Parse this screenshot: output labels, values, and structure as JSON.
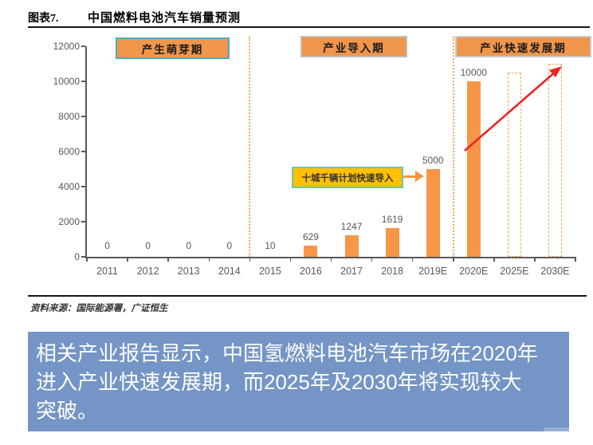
{
  "header": {
    "figure_label": "图表7.",
    "figure_title": "中国燃料电池汽车销量预测"
  },
  "source": {
    "text": "资料来源：国际能源署，广证恒生"
  },
  "banner": {
    "lines": [
      "相关产业报告显示，中国氢燃料电池汽车市场在2020年",
      "进入产业快速发展期，而2025年及2030年将实现较大",
      "突破。"
    ],
    "bg_color": "#7495C5",
    "text_color": "#FFFFFF"
  },
  "chart_data": {
    "type": "bar",
    "title": "中国燃料电池汽车销量预测",
    "categories": [
      "2011",
      "2012",
      "2013",
      "2014",
      "2015",
      "2016",
      "2017",
      "2018",
      "2019E",
      "2020E",
      "2025E",
      "2030E"
    ],
    "values": [
      0,
      0,
      0,
      0,
      10,
      629,
      1247,
      1619,
      5000,
      10000,
      10500,
      11000
    ],
    "data_labels": [
      "0",
      "0",
      "0",
      "0",
      "10",
      "629",
      "1247",
      "1619",
      "5000",
      "10000",
      "",
      ""
    ],
    "bar_style": [
      "solid",
      "solid",
      "solid",
      "solid",
      "solid",
      "solid",
      "solid",
      "solid",
      "solid",
      "solid",
      "outline",
      "outline"
    ],
    "xlabel": "",
    "ylabel": "",
    "ylim": [
      0,
      12000
    ],
    "ytick_step": 2000,
    "yticks": [
      0,
      2000,
      4000,
      6000,
      8000,
      10000,
      12000
    ],
    "grid": false,
    "legend": false,
    "bar_color": "#F79646",
    "outline_bar_color": "#F2A45C",
    "axis_color": "#595959",
    "label_color": "#595959",
    "dividers_after_index": [
      3,
      8
    ],
    "divider_color": "#F8A95D",
    "phase_fill": "#F0964B",
    "phases": [
      {
        "label": "产生萌芽期",
        "border_color": "#4BACC6"
      },
      {
        "label": "产业导入期",
        "border_color": "#C4BDB2"
      },
      {
        "label": "产业快速发展期",
        "border_color": "#C9C9C9"
      }
    ],
    "callout": {
      "label": "十城千辆计划快速导入",
      "fill": "#FFC000",
      "border_color": "#6CC5B4",
      "arrow_color": "#F79646",
      "target_category": "2019E"
    },
    "trend_arrow": {
      "color": "#EE2222",
      "from_category": "2020E",
      "to_category": "2030E"
    }
  }
}
